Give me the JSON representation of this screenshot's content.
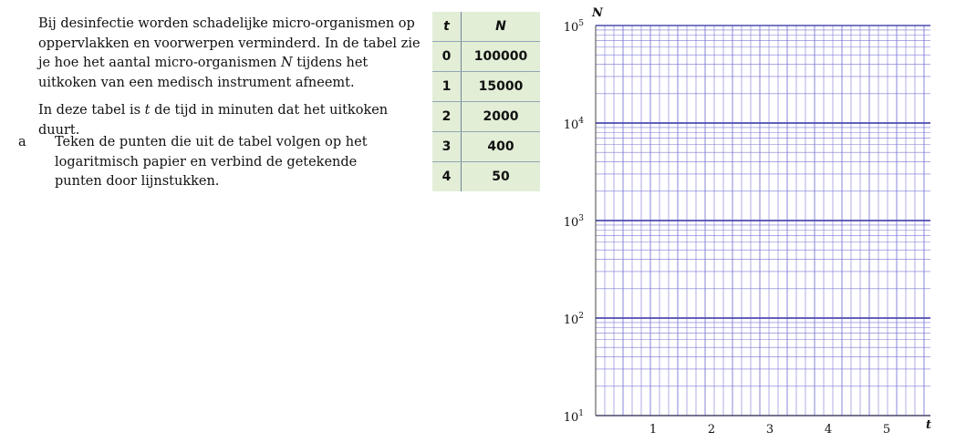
{
  "intro": {
    "para1_a": "Bij desinfectie worden schadelijke micro-organismen op oppervlakken en voorwerpen verminderd. In de tabel zie je hoe het aantal micro-organismen ",
    "para1_var": "N",
    "para1_b": " tijdens het uitkoken van een medisch instrument afneemt.",
    "para2_a": "In deze tabel is ",
    "para2_var": "t",
    "para2_b": " de tijd in minuten dat het uitkoken duurt."
  },
  "question": {
    "letter": "a",
    "text": "Teken de punten die uit de tabel volgen op het logaritmisch papier en verbind de getekende punten door lijnstukken."
  },
  "table": {
    "headers": [
      "t",
      "N"
    ],
    "rows": [
      [
        "0",
        "100000"
      ],
      [
        "1",
        "15000"
      ],
      [
        "2",
        "2000"
      ],
      [
        "3",
        "400"
      ],
      [
        "4",
        "50"
      ]
    ]
  },
  "log_paper": {
    "y_axis_label": "N",
    "x_axis_label": "t",
    "y_ticks": [
      {
        "base": "10",
        "exp": "5"
      },
      {
        "base": "10",
        "exp": "4"
      },
      {
        "base": "10",
        "exp": "3"
      },
      {
        "base": "10",
        "exp": "2"
      },
      {
        "base": "10",
        "exp": "1"
      }
    ],
    "x_ticks": [
      "1",
      "2",
      "3",
      "4",
      "5"
    ],
    "grid_color": "#7b77d4",
    "decade_line_color": "#4f4bb0"
  }
}
